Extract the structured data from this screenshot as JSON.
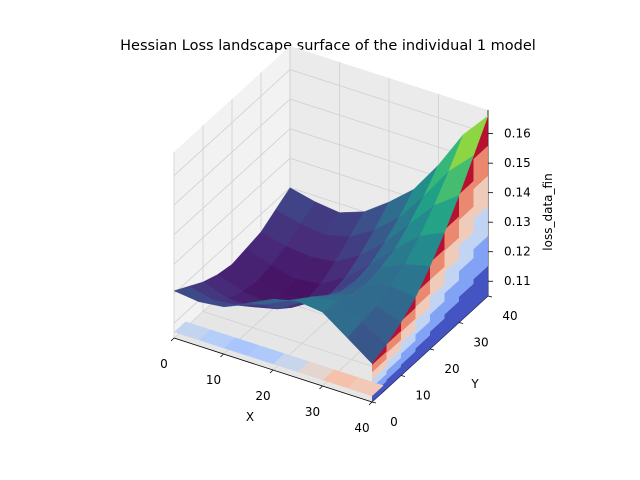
{
  "chart_data": {
    "type": "surface",
    "title": "Hessian Loss landscape surface of the individual 1 model",
    "xlabel": "X",
    "ylabel": "Y",
    "zlabel": "loss_data_fin",
    "xlim": [
      0,
      40
    ],
    "ylim": [
      0,
      40
    ],
    "zlim": [
      0.105,
      0.168
    ],
    "x_ticks": [
      "0",
      "10",
      "20",
      "30",
      "40"
    ],
    "y_ticks": [
      "0",
      "10",
      "20",
      "30",
      "40"
    ],
    "z_ticks": [
      "0.11",
      "0.12",
      "0.13",
      "0.14",
      "0.15",
      "0.16"
    ],
    "grid": true,
    "colormaps": [
      "viridis",
      "coolwarm"
    ],
    "surface": {
      "x": [
        0,
        5,
        10,
        15,
        20,
        25,
        30,
        35,
        40
      ],
      "y": [
        0,
        5,
        10,
        15,
        20,
        25,
        30,
        35,
        40
      ],
      "z": [
        [
          0.121,
          0.118,
          0.115,
          0.113,
          0.112,
          0.113,
          0.114,
          0.117,
          0.12
        ],
        [
          0.12,
          0.116,
          0.112,
          0.11,
          0.109,
          0.11,
          0.112,
          0.115,
          0.118
        ],
        [
          0.121,
          0.117,
          0.112,
          0.109,
          0.107,
          0.108,
          0.111,
          0.114,
          0.117
        ],
        [
          0.125,
          0.12,
          0.114,
          0.11,
          0.108,
          0.109,
          0.112,
          0.116,
          0.12
        ],
        [
          0.129,
          0.124,
          0.119,
          0.115,
          0.113,
          0.114,
          0.117,
          0.121,
          0.126
        ],
        [
          0.131,
          0.128,
          0.124,
          0.121,
          0.12,
          0.121,
          0.124,
          0.128,
          0.133
        ],
        [
          0.13,
          0.129,
          0.127,
          0.126,
          0.127,
          0.129,
          0.133,
          0.138,
          0.144
        ],
        [
          0.124,
          0.125,
          0.126,
          0.128,
          0.131,
          0.136,
          0.142,
          0.149,
          0.157
        ],
        [
          0.118,
          0.12,
          0.123,
          0.127,
          0.133,
          0.14,
          0.148,
          0.157,
          0.166
        ]
      ]
    }
  }
}
